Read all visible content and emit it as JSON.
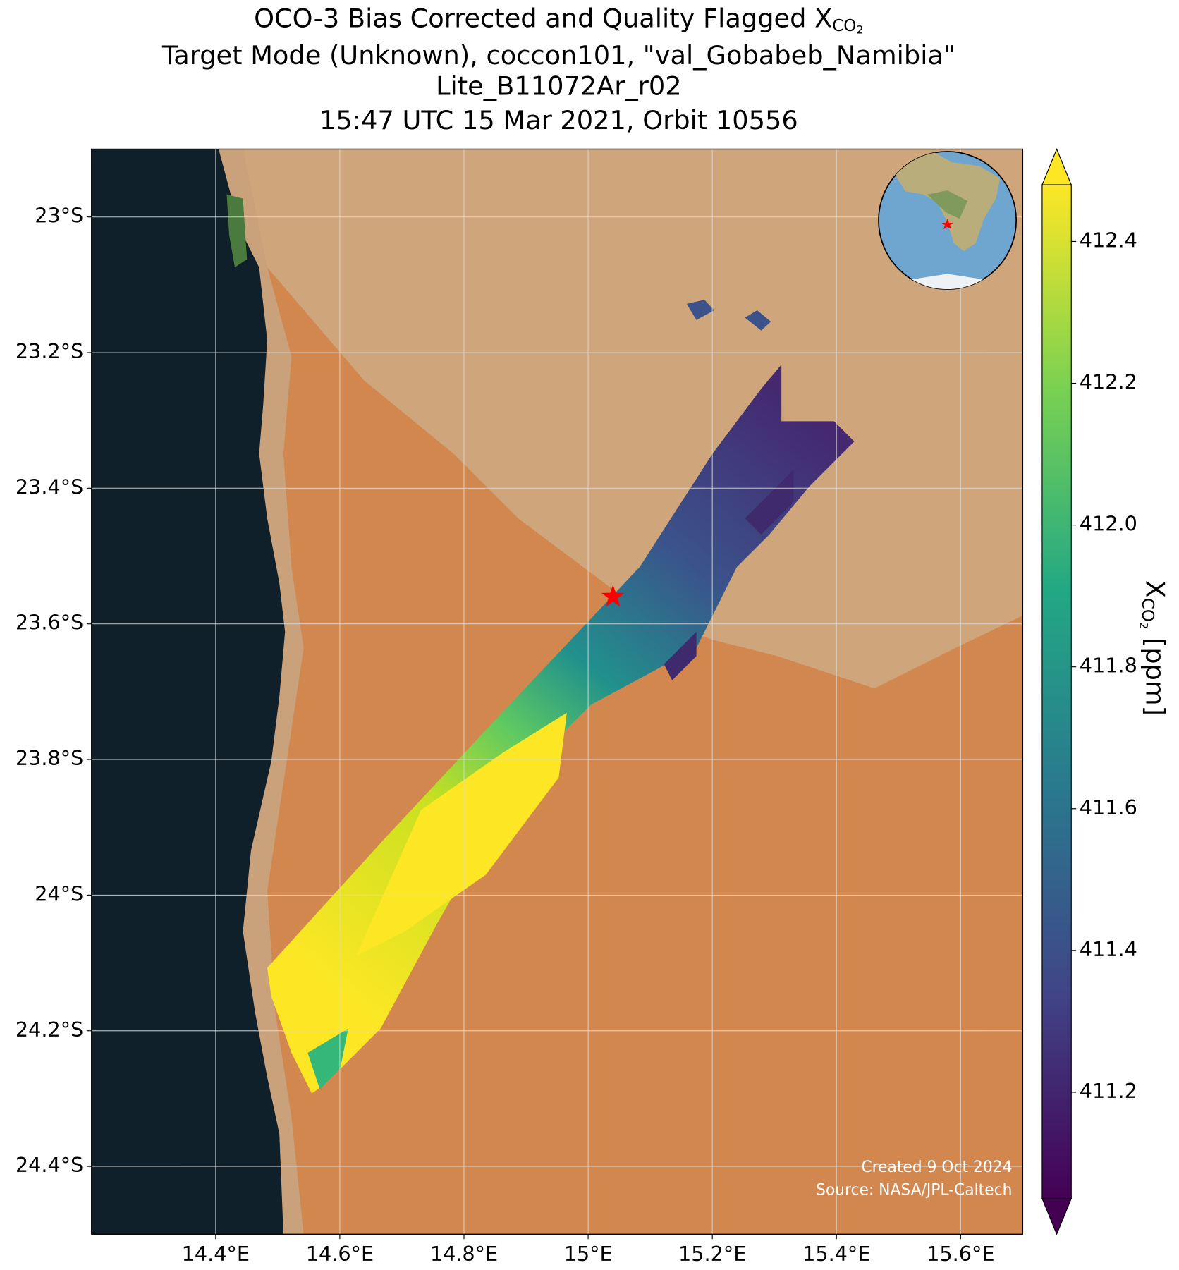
{
  "chart_data": {
    "type": "map",
    "title": [
      {
        "text": "OCO-3 Bias Corrected and Quality Flagged X",
        "sub": "CO",
        "subsub": "2"
      },
      "Target Mode (Unknown), coccon101, \"val_Gobabeb_Namibia\"",
      "Lite_B11072Ar_r02",
      "15:47 UTC 15 Mar 2021, Orbit 10556"
    ],
    "xlim": [
      14.2,
      15.7
    ],
    "ylim": [
      -24.5,
      -22.9
    ],
    "xticks": [
      {
        "value": 14.4,
        "label": "14.4°E"
      },
      {
        "value": 14.6,
        "label": "14.6°E"
      },
      {
        "value": 14.8,
        "label": "14.8°E"
      },
      {
        "value": 15,
        "label": "15°E"
      },
      {
        "value": 15.2,
        "label": "15.2°E"
      },
      {
        "value": 15.4,
        "label": "15.4°E"
      },
      {
        "value": 15.6,
        "label": "15.6°E"
      }
    ],
    "yticks": [
      {
        "value": -23,
        "label": "23°S"
      },
      {
        "value": -23.2,
        "label": "23.2°S"
      },
      {
        "value": -23.4,
        "label": "23.4°S"
      },
      {
        "value": -23.6,
        "label": "23.6°S"
      },
      {
        "value": -23.8,
        "label": "23.8°S"
      },
      {
        "value": -24,
        "label": "24°S"
      },
      {
        "value": -24.2,
        "label": "24.2°S"
      },
      {
        "value": -24.4,
        "label": "24.4°S"
      }
    ],
    "grid": true,
    "site": {
      "lon": 15.04,
      "lat": -23.56,
      "color": "#ff0000"
    },
    "colorbar": {
      "label": {
        "text": "X",
        "sub": "CO",
        "subsub": "2",
        "after": " [ppm]"
      },
      "clim": [
        411.05,
        412.48
      ],
      "ticks": [
        411.2,
        411.4,
        411.6,
        411.8,
        {
          "value": 412,
          "label": "412.0"
        },
        412.2,
        412.4
      ],
      "colormap": [
        "#440154",
        "#414487",
        "#2a788e",
        "#22a884",
        "#7ad151",
        "#fde725"
      ]
    },
    "credits": [
      "Created 9 Oct 2024",
      "Source: NASA/JPL-Caltech"
    ]
  }
}
